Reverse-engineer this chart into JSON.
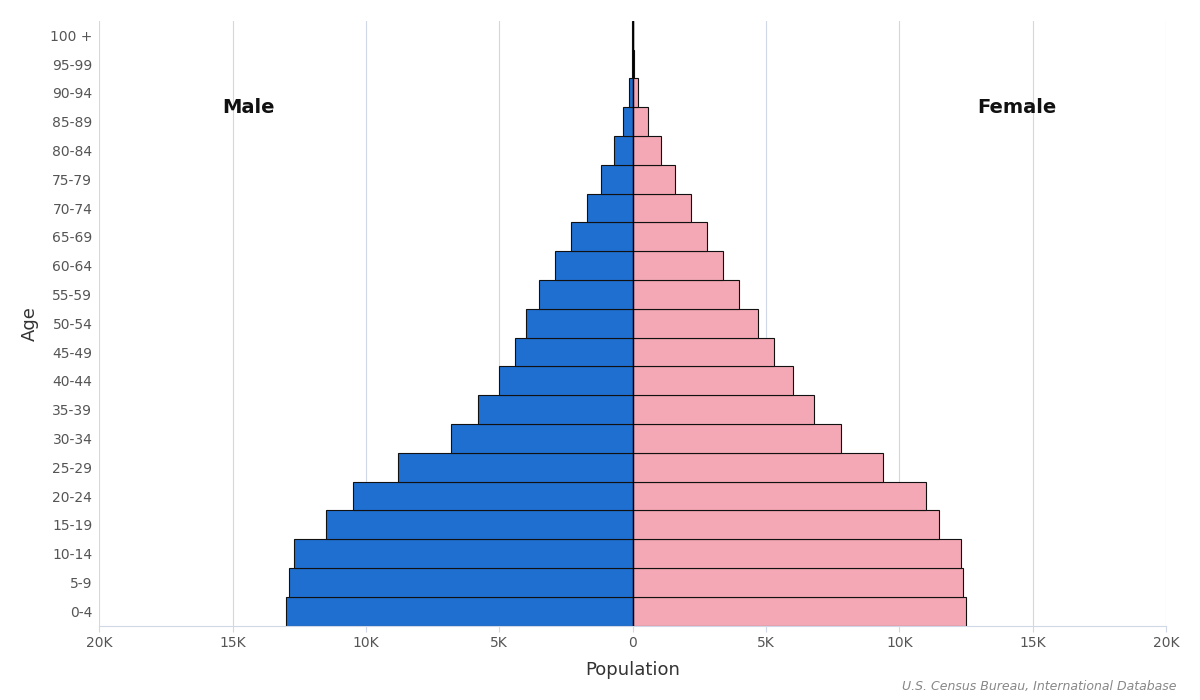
{
  "age_groups": [
    "0-4",
    "5-9",
    "10-14",
    "15-19",
    "20-24",
    "25-29",
    "30-34",
    "35-39",
    "40-44",
    "45-49",
    "50-54",
    "55-59",
    "60-64",
    "65-69",
    "70-74",
    "75-79",
    "80-84",
    "85-89",
    "90-94",
    "95-99",
    "100 +"
  ],
  "male": [
    13000,
    12900,
    12700,
    11500,
    10500,
    8800,
    6800,
    5800,
    5000,
    4400,
    4000,
    3500,
    2900,
    2300,
    1700,
    1200,
    700,
    350,
    120,
    40,
    8
  ],
  "female": [
    12500,
    12400,
    12300,
    11500,
    11000,
    9400,
    7800,
    6800,
    6000,
    5300,
    4700,
    4000,
    3400,
    2800,
    2200,
    1600,
    1050,
    560,
    220,
    70,
    12
  ],
  "male_color": "#1f6fd0",
  "female_color": "#f4a7b4",
  "background_color": "#ffffff",
  "xlabel": "Population",
  "ylabel": "Age",
  "xlim": 20000,
  "male_label": "Male",
  "female_label": "Female",
  "source_text": "U.S. Census Bureau, International Database",
  "bar_edgecolor": "#111111",
  "bar_linewidth": 0.8,
  "gridline_color": "#d0d8e8",
  "tick_label_color": "#555555"
}
